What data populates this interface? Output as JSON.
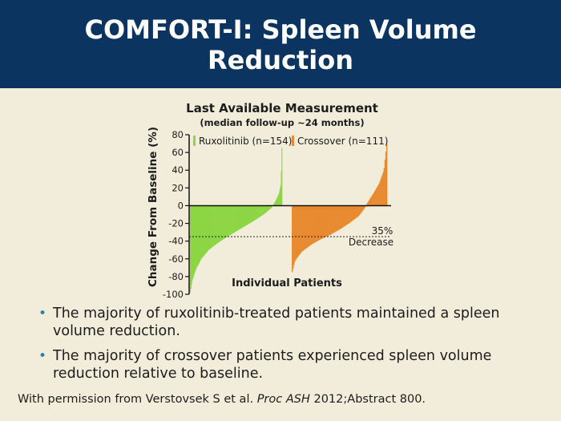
{
  "slide": {
    "title_line1": "COMFORT-I: Spleen Volume",
    "title_line2": "Reduction",
    "bullets": [
      "The majority of ruxolitinib-treated patients maintained a spleen volume reduction.",
      "The majority of crossover patients experienced spleen volume reduction relative to baseline."
    ],
    "footer_prefix": "With permission from Verstovsek S et al. ",
    "footer_italic": "Proc ASH",
    "footer_suffix": " 2012;Abstract 800."
  },
  "chart_data": {
    "type": "bar",
    "title": "Last Available Measurement",
    "subtitle": "(median follow-up ~24 months)",
    "ylabel": "Change From Baseline (%)",
    "xlabel": "Individual Patients",
    "ylim": [
      -100,
      80
    ],
    "yticks": [
      "80",
      "60",
      "40",
      "20",
      "0",
      "-20",
      "-40",
      "-60",
      "-80",
      "-100"
    ],
    "grid": false,
    "reference_line": {
      "value": -35,
      "label_line1": "35%",
      "label_line2": "Decrease"
    },
    "series": [
      {
        "name": "Ruxolitinib (n=154)",
        "color": "#8dd645",
        "n": 154,
        "profile": [
          [
            0,
            -98
          ],
          [
            0.02,
            -85
          ],
          [
            0.06,
            -72
          ],
          [
            0.12,
            -60
          ],
          [
            0.2,
            -50
          ],
          [
            0.3,
            -42
          ],
          [
            0.42,
            -34
          ],
          [
            0.55,
            -26
          ],
          [
            0.68,
            -18
          ],
          [
            0.8,
            -10
          ],
          [
            0.88,
            -3
          ],
          [
            0.93,
            5
          ],
          [
            0.97,
            14
          ],
          [
            0.99,
            25
          ],
          [
            1,
            65
          ]
        ]
      },
      {
        "name": "Crossover (n=111)",
        "color": "#e88a30",
        "n": 111,
        "profile": [
          [
            0,
            -75
          ],
          [
            0.03,
            -62
          ],
          [
            0.1,
            -52
          ],
          [
            0.2,
            -44
          ],
          [
            0.3,
            -38
          ],
          [
            0.4,
            -33
          ],
          [
            0.5,
            -27
          ],
          [
            0.6,
            -20
          ],
          [
            0.7,
            -12
          ],
          [
            0.76,
            -4
          ],
          [
            0.8,
            4
          ],
          [
            0.86,
            14
          ],
          [
            0.92,
            25
          ],
          [
            0.97,
            40
          ],
          [
            1,
            70
          ]
        ]
      }
    ]
  }
}
